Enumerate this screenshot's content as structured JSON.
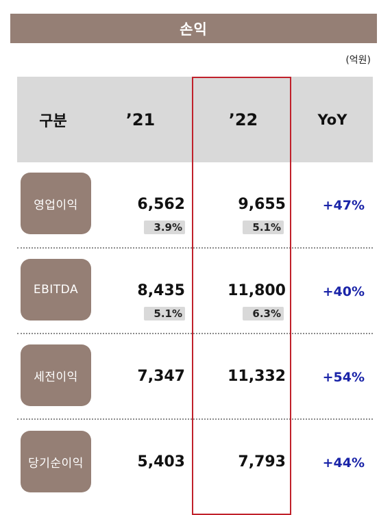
{
  "title": "손익",
  "unit": "(억원)",
  "header": {
    "label": "구분",
    "y21": "’21",
    "y22": "’22",
    "yoy": "YoY"
  },
  "rows": [
    {
      "label": "영업이익",
      "v21": "6,562",
      "m21": "3.9%",
      "v22": "9,655",
      "m22": "5.1%",
      "yoy": "+47%"
    },
    {
      "label": "EBITDA",
      "v21": "8,435",
      "m21": "5.1%",
      "v22": "11,800",
      "m22": "6.3%",
      "yoy": "+40%"
    },
    {
      "label": "세전이익",
      "v21": "7,347",
      "v22": "11,332",
      "yoy": "+54%"
    },
    {
      "label": "당기순이익",
      "v21": "5,403",
      "v22": "7,793",
      "yoy": "+44%"
    }
  ],
  "colors": {
    "accent": "#957f75",
    "highlight_border": "#c0202a",
    "yoy_text": "#1a24a8",
    "header_bg": "#d9d9d9"
  }
}
